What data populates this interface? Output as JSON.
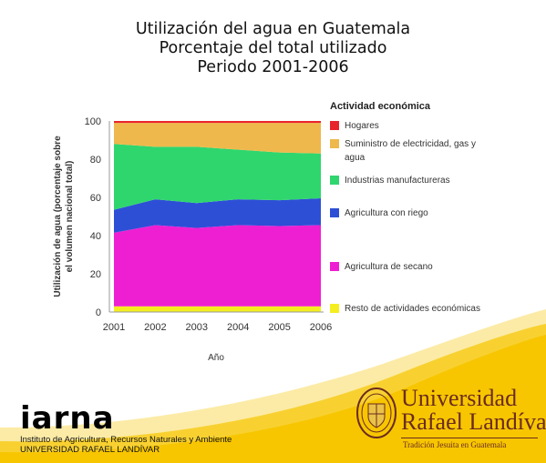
{
  "title": {
    "line1": "Utilización del agua en Guatemala",
    "line2": "Porcentaje del total utilizado",
    "line3": "Periodo 2001-2006"
  },
  "legend_title": "Actividad económica",
  "chart_data": {
    "type": "area",
    "stacked": true,
    "x": [
      2001,
      2002,
      2003,
      2004,
      2005,
      2006
    ],
    "xlabel": "Año",
    "ylabel": "Utilización de agua (porcentaje sobre el volumen nacional total)",
    "ylabel_lines": [
      "Utilización de agua (porcentaje sobre",
      "el volumen nacional total)"
    ],
    "ylim": [
      0,
      100
    ],
    "yticks": [
      0,
      20,
      40,
      60,
      80,
      100
    ],
    "legend_position": "right",
    "grid": false,
    "series": [
      {
        "name": "Resto de actividades económicas",
        "color": "#f5ee1f",
        "values": [
          3,
          3,
          3,
          3,
          3,
          3
        ]
      },
      {
        "name": "Agricultura de secano",
        "color": "#ee1fd2",
        "values": [
          38.5,
          42.5,
          41,
          42.5,
          42,
          42.5
        ]
      },
      {
        "name": "Agricultura con riego",
        "color": "#2d4fd6",
        "values": [
          12,
          13.5,
          13,
          13.5,
          13.5,
          14
        ]
      },
      {
        "name": "Industrias manufactureras",
        "color": "#2fd66e",
        "values": [
          34.5,
          27.5,
          29.5,
          26,
          25,
          23.5
        ]
      },
      {
        "name": "Suministro de electricidad, gas y agua",
        "color": "#efb84c",
        "values": [
          11,
          12.5,
          12.5,
          14,
          15.5,
          16
        ]
      },
      {
        "name": "Hogares",
        "color": "#e8242b",
        "values": [
          1,
          1,
          1,
          1,
          1,
          1
        ]
      }
    ]
  },
  "legend_lines": {
    "electricidad_line1": "Suministro de electricidad, gas y",
    "electricidad_line2": "agua"
  },
  "footer": {
    "iarna_logo": "iarna",
    "iarna_line1": "Instituto de Agricultura, Recursos Naturales y Ambiente",
    "iarna_line2": "UNIVERSIDAD RAFAEL LANDÍVAR",
    "url_line1": "Universidad",
    "url_line2": "Rafael Landívar",
    "url_tagline": "Tradición Jesuita en Guatemala",
    "colors": {
      "accent": "#f7c600",
      "brand": "#6b2b1e"
    }
  }
}
